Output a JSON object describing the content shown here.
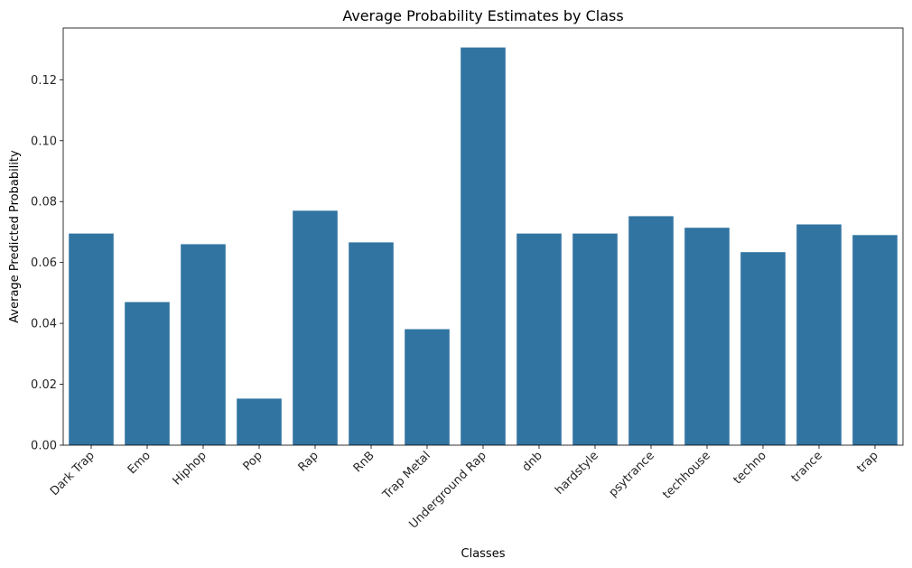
{
  "chart_data": {
    "type": "bar",
    "title": "Average Probability Estimates by Class",
    "xlabel": "Classes",
    "ylabel": "Average Predicted Probability",
    "categories": [
      "Dark Trap",
      "Emo",
      "Hiphop",
      "Pop",
      "Rap",
      "RnB",
      "Trap Metal",
      "Underground Rap",
      "dnb",
      "hardstyle",
      "psytrance",
      "techhouse",
      "techno",
      "trance",
      "trap"
    ],
    "values": [
      0.0695,
      0.047,
      0.066,
      0.0153,
      0.077,
      0.0666,
      0.0381,
      0.1306,
      0.0695,
      0.0695,
      0.0752,
      0.0714,
      0.0634,
      0.0725,
      0.069
    ],
    "yticks": [
      "0.00",
      "0.02",
      "0.04",
      "0.06",
      "0.08",
      "0.10",
      "0.12"
    ],
    "ylim": [
      0,
      0.137
    ],
    "grid": false,
    "bar_color": "#3274a1"
  }
}
